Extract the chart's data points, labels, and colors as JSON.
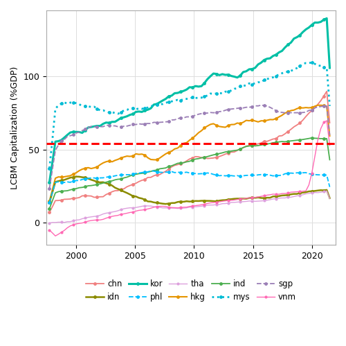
{
  "title": "",
  "ylabel": "LCBM Capitalization (%GDP)",
  "xlabel": "",
  "xlim": [
    1997.5,
    2022.0
  ],
  "ylim": [
    -15,
    145
  ],
  "yticks": [
    0,
    50,
    100
  ],
  "xticks": [
    2000,
    2005,
    2010,
    2015,
    2020
  ],
  "hline_y": 54,
  "hline_color": "#FF0000",
  "background_color": "#ffffff",
  "grid_color": "#dddddd",
  "series": {
    "chn": {
      "color": "#F08080",
      "linestyle": "-",
      "linewidth": 1.3,
      "marker": "o",
      "markersize": 2.5
    },
    "hkg": {
      "color": "#E69500",
      "linestyle": "-",
      "linewidth": 1.5,
      "marker": "o",
      "markersize": 2.5
    },
    "idn": {
      "color": "#8B8B00",
      "linestyle": "-",
      "linewidth": 1.8,
      "marker": "o",
      "markersize": 2.5
    },
    "ind": {
      "color": "#4CAF50",
      "linestyle": "-",
      "linewidth": 1.3,
      "marker": "o",
      "markersize": 2.5
    },
    "kor": {
      "color": "#00BFA5",
      "linestyle": "-",
      "linewidth": 2.2,
      "marker": "o",
      "markersize": 2.5
    },
    "mys": {
      "color": "#00BCD4",
      "linestyle": ":",
      "linewidth": 2.0,
      "marker": "o",
      "markersize": 2.5
    },
    "phl": {
      "color": "#00BFFF",
      "linestyle": "--",
      "linewidth": 1.3,
      "marker": "o",
      "markersize": 2.5
    },
    "sgp": {
      "color": "#9B7FB6",
      "linestyle": "--",
      "linewidth": 1.3,
      "marker": "o",
      "markersize": 2.5
    },
    "tha": {
      "color": "#DDA0DD",
      "linestyle": "-",
      "linewidth": 1.0,
      "marker": "o",
      "markersize": 2.0
    },
    "vnm": {
      "color": "#FF69B4",
      "linestyle": "-",
      "linewidth": 1.0,
      "marker": "o",
      "markersize": 2.0
    }
  },
  "legend_order": [
    "chn",
    "idn",
    "kor",
    "phl",
    "tha",
    "hkg",
    "ind",
    "mys",
    "sgp",
    "vnm"
  ]
}
